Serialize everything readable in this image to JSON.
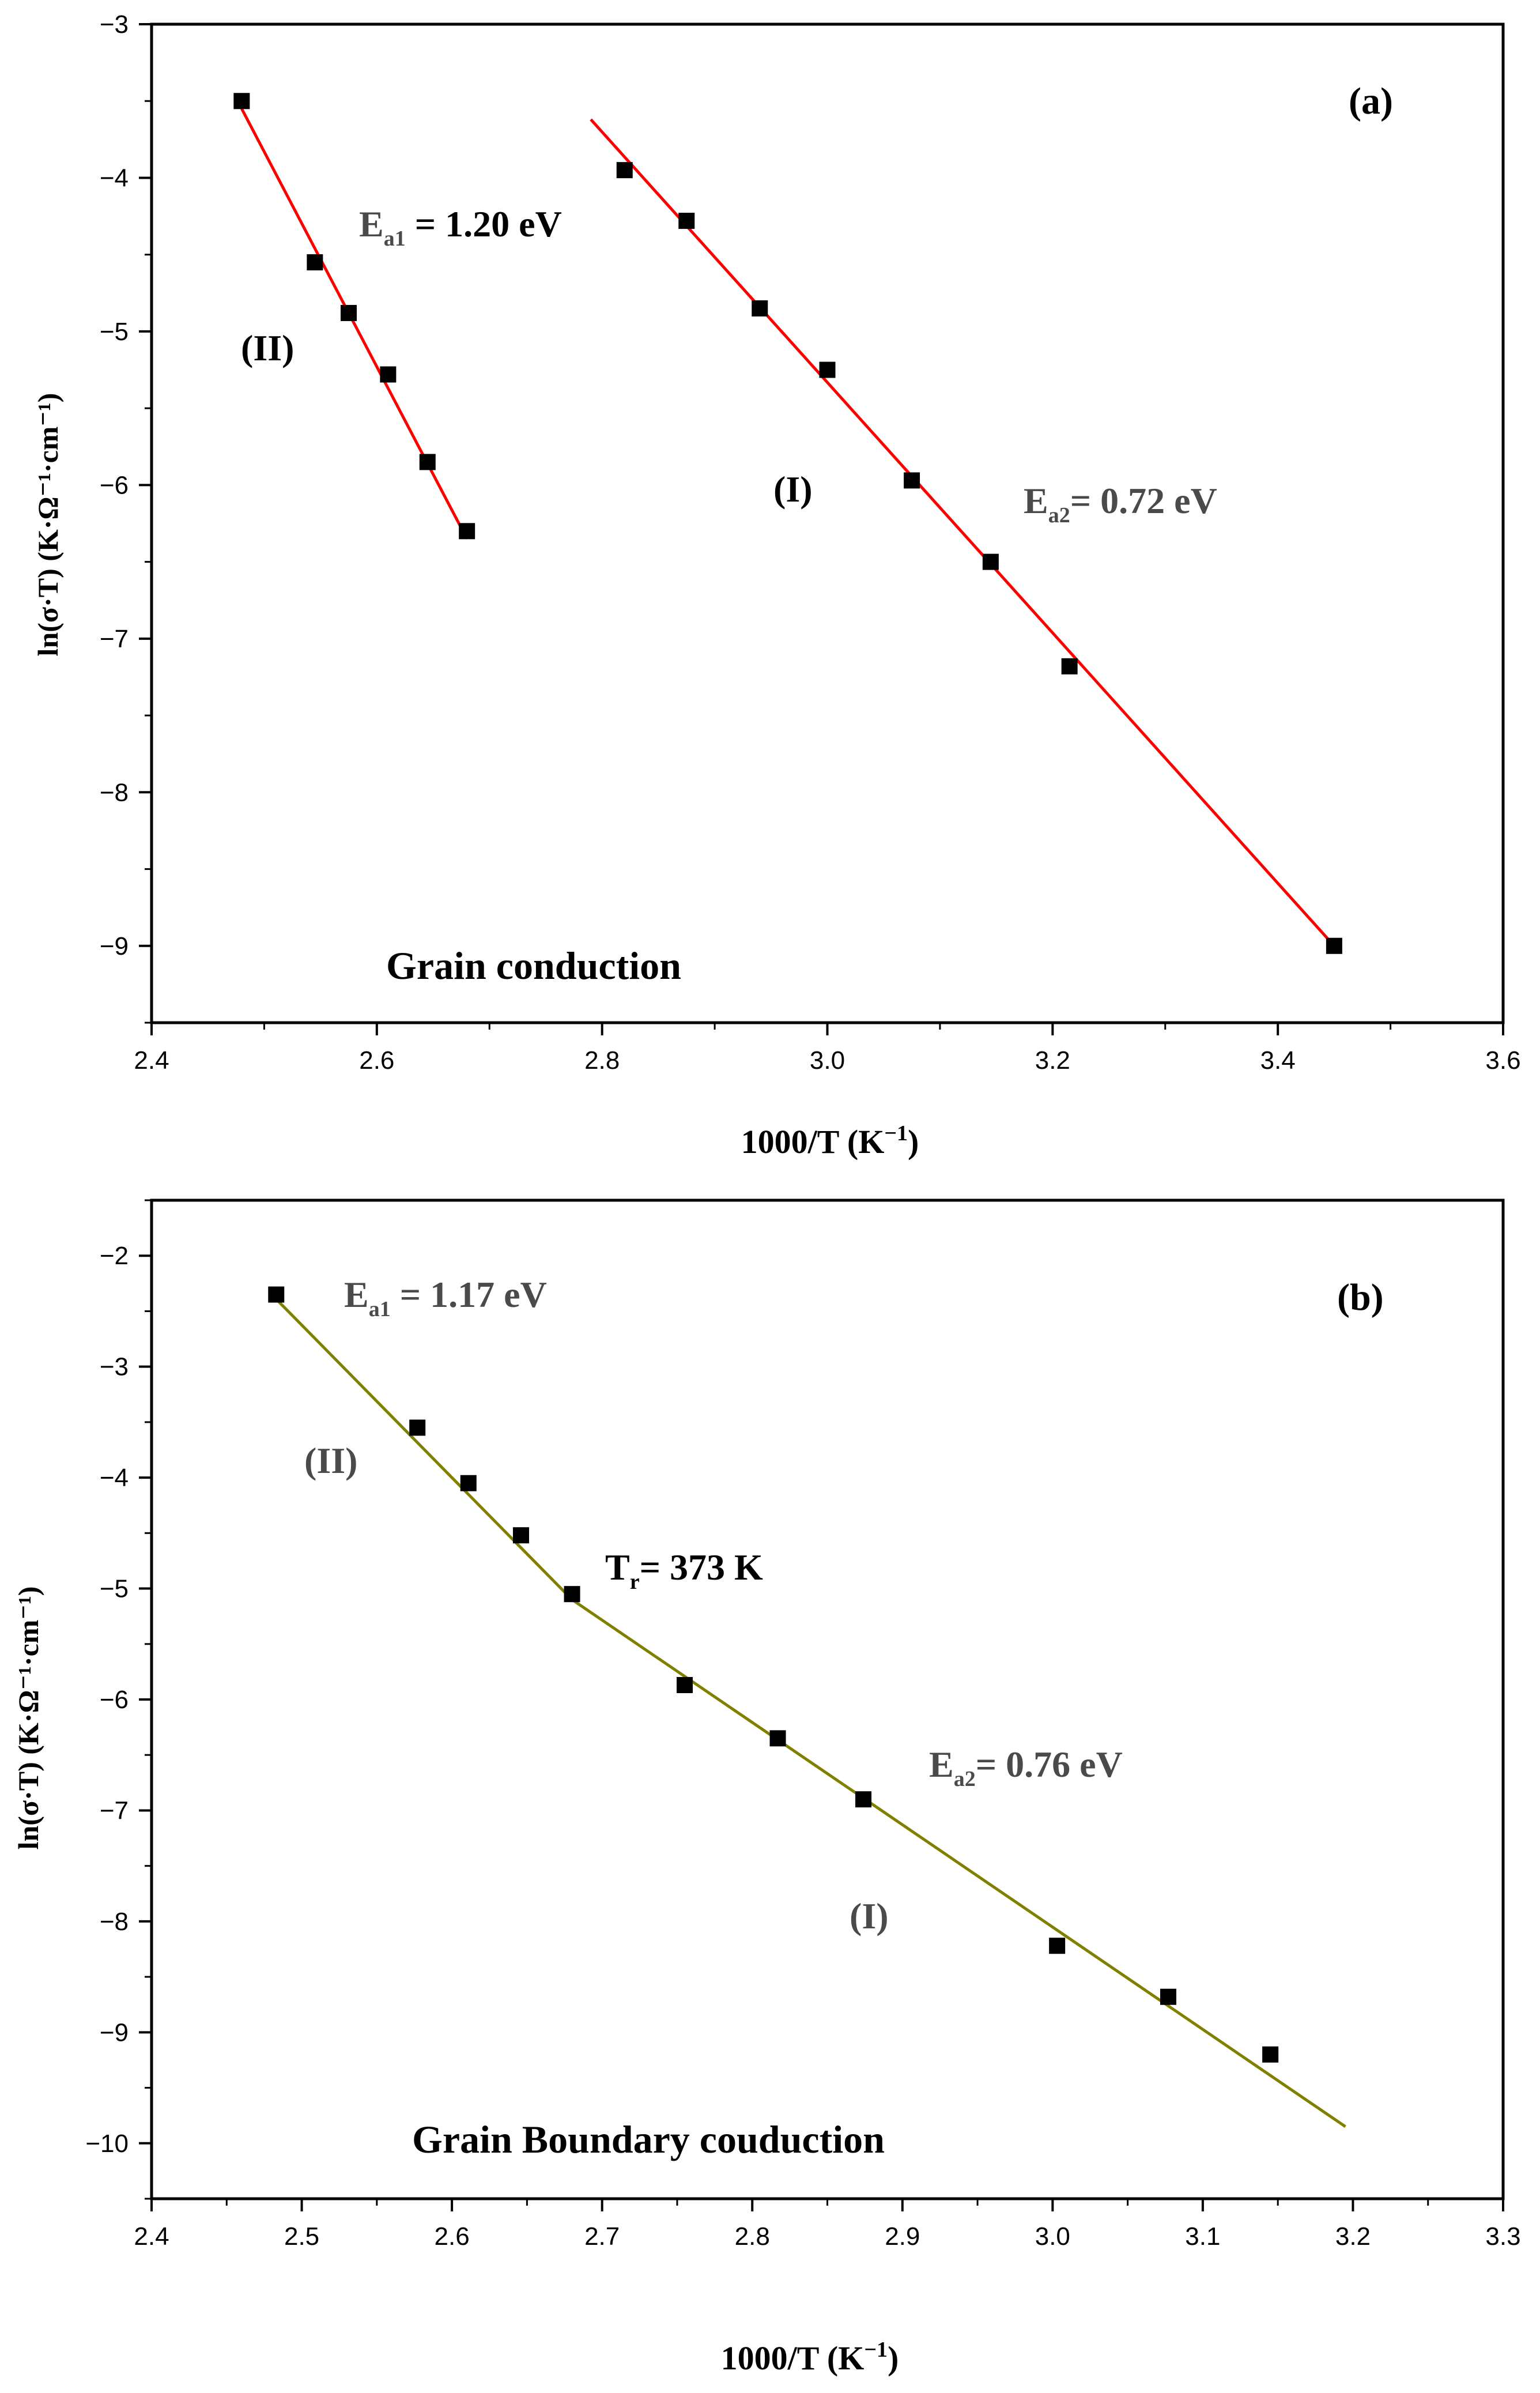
{
  "chart_data": [
    {
      "type": "scatter",
      "panel_label": "(a)",
      "title": "Grain conduction",
      "xlabel": "1000/T (K",
      "xlabel_exp": "−1",
      "xlabel_tail": ")",
      "ylabel": "ln(σ·T)  (K·Ω⁻¹·cm⁻¹)",
      "xlim": [
        2.4,
        3.6
      ],
      "ylim": [
        -9.5,
        -3
      ],
      "xticks": [
        "2.4",
        "2.6",
        "2.8",
        "3.0",
        "3.2",
        "3.4",
        "3.6"
      ],
      "yticks": [
        "−3",
        "−4",
        "−5",
        "−6",
        "−7",
        "−8",
        "−9"
      ],
      "line_color": "#ff0000",
      "marker_color": "#000000",
      "series": [
        {
          "name": "(II)",
          "x": [
            2.48,
            2.545,
            2.575,
            2.61,
            2.645,
            2.68
          ],
          "y": [
            -3.5,
            -4.55,
            -4.88,
            -5.28,
            -5.85,
            -6.3
          ],
          "fit": {
            "x": [
              2.48,
              2.68
            ],
            "y": [
              -3.55,
              -6.35
            ]
          },
          "annotation": {
            "E": "E",
            "sub": "a1",
            "value": " = 1.20 eV"
          }
        },
        {
          "name": "(I)",
          "x": [
            2.82,
            2.875,
            2.94,
            3.0,
            3.075,
            3.145,
            3.215,
            3.45
          ],
          "y": [
            -3.95,
            -4.28,
            -4.85,
            -5.25,
            -5.97,
            -6.5,
            -7.18,
            -9.0
          ],
          "fit": {
            "x": [
              2.79,
              3.45
            ],
            "y": [
              -3.62,
              -9.0
            ]
          },
          "annotation": {
            "E": "E",
            "sub": "a2",
            "value": "= 0.72 eV"
          }
        }
      ]
    },
    {
      "type": "scatter",
      "panel_label": "(b)",
      "title": "Grain Boundary couduction",
      "xlabel": "1000/T (K",
      "xlabel_exp": "−1",
      "xlabel_tail": ")",
      "ylabel": "ln(σ·T)  (K·Ω⁻¹·cm⁻¹)",
      "xlim": [
        2.4,
        3.3
      ],
      "ylim": [
        -10.5,
        -1.5
      ],
      "xticks": [
        "2.4",
        "2.5",
        "2.6",
        "2.7",
        "2.8",
        "2.9",
        "3.0",
        "3.1",
        "3.2",
        "3.3"
      ],
      "yticks": [
        "−2",
        "−3",
        "−4",
        "−5",
        "−6",
        "−7",
        "−8",
        "−9",
        "−10"
      ],
      "line_color": "#808000",
      "marker_color": "#000000",
      "transition": {
        "T": "T",
        "sub": "r",
        "value": "= 373 K"
      },
      "series": [
        {
          "name": "(II)",
          "x": [
            2.483,
            2.577,
            2.611,
            2.646,
            2.68
          ],
          "y": [
            -2.35,
            -3.55,
            -4.05,
            -4.52,
            -5.05
          ],
          "fit": {
            "x": [
              2.48,
              2.68
            ],
            "y": [
              -2.35,
              -5.1
            ]
          },
          "annotation": {
            "E": "E",
            "sub": "a1",
            "value": " = 1.17 eV"
          }
        },
        {
          "name": "(I)",
          "x": [
            2.755,
            2.817,
            2.874,
            3.003,
            3.077,
            3.145
          ],
          "y": [
            -5.87,
            -6.35,
            -6.9,
            -8.22,
            -8.68,
            -9.2
          ],
          "fit": {
            "x": [
              2.68,
              3.195
            ],
            "y": [
              -5.1,
              -9.85
            ]
          },
          "annotation": {
            "E": "E",
            "sub": "a2",
            "value": "= 0.76 eV"
          }
        }
      ]
    }
  ]
}
